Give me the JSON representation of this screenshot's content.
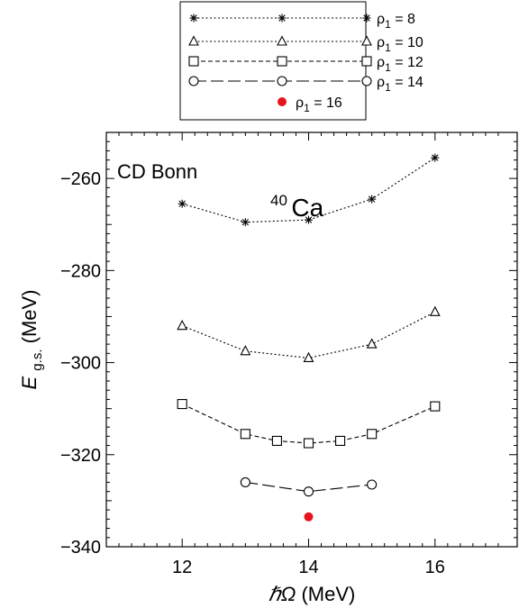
{
  "chart_data": {
    "type": "line",
    "xlabel_italic": "ℏΩ",
    "xlabel_unit": "(MeV)",
    "ylabel_italic": "E",
    "ylabel_sub": "g.s.",
    "ylabel_unit": "(MeV)",
    "xlim": [
      10.8,
      17.3
    ],
    "ylim": [
      -340,
      -250
    ],
    "xticks": [
      12,
      14,
      16
    ],
    "yticks": [
      -340,
      -320,
      -300,
      -280,
      -260
    ],
    "annotations": {
      "interaction": "CD Bonn",
      "nucleus_mass": "40",
      "nucleus_symbol": "Ca"
    },
    "series": [
      {
        "name": "ρ1 = 8",
        "label_main": "ρ",
        "label_sub": "1",
        "label_value": "= 8",
        "marker": "star",
        "dash": "dotted",
        "x": [
          12,
          13,
          14,
          15,
          16
        ],
        "y": [
          -265.5,
          -269.5,
          -269.0,
          -264.5,
          -255.5
        ]
      },
      {
        "name": "ρ1 = 10",
        "label_main": "ρ",
        "label_sub": "1",
        "label_value": "= 10",
        "marker": "triangle",
        "dash": "dotted",
        "x": [
          12,
          13,
          14,
          15,
          16
        ],
        "y": [
          -292.0,
          -297.5,
          -299.0,
          -296.0,
          -289.0
        ]
      },
      {
        "name": "ρ1 = 12",
        "label_main": "ρ",
        "label_sub": "1",
        "label_value": "= 12",
        "marker": "square",
        "dash": "dashed",
        "x": [
          12,
          13,
          13.5,
          14,
          14.5,
          15,
          16
        ],
        "y": [
          -309.0,
          -315.5,
          -317.0,
          -317.5,
          -317.0,
          -315.5,
          -309.5
        ]
      },
      {
        "name": "ρ1 = 14",
        "label_main": "ρ",
        "label_sub": "1",
        "label_value": "= 14",
        "marker": "circle",
        "dash": "longdash",
        "x": [
          13,
          14,
          15
        ],
        "y": [
          -326.0,
          -328.0,
          -326.5
        ]
      },
      {
        "name": "ρ1 = 16",
        "label_main": "ρ",
        "label_sub": "1",
        "label_value": "= 16",
        "marker": "filled-circle",
        "dash": "none",
        "color": "#e8141c",
        "x": [
          14
        ],
        "y": [
          -333.5
        ]
      }
    ]
  }
}
